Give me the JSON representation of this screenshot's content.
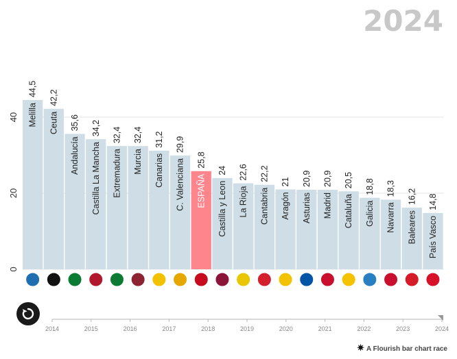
{
  "header": {
    "year": "2024"
  },
  "controls": {
    "credit": "A Flourish bar chart race"
  },
  "timeline": {
    "years": [
      "2014",
      "2015",
      "2016",
      "2017",
      "2018",
      "2019",
      "2020",
      "2021",
      "2022",
      "2023",
      "2024"
    ]
  },
  "colors": {
    "bar": "#cfdee6",
    "highlight": "#ff858d",
    "grid": "#e6e6e6"
  },
  "chart_data": {
    "type": "bar",
    "title": "2024",
    "categories": [
      "Melilla",
      "Ceuta",
      "Andalucía",
      "Castilla La Mancha",
      "Extremadura",
      "Murcia",
      "Canarias",
      "C. Valenciana",
      "ESPAÑA",
      "Castilla y Leon",
      "La Rioja",
      "Cantabria",
      "Aragón",
      "Asturias",
      "Madrid",
      "Cataluña",
      "Galicia",
      "Navarra",
      "Baleares",
      "País Vasco"
    ],
    "values": [
      44.5,
      42.2,
      35.6,
      34.2,
      32.4,
      32.4,
      31.2,
      29.9,
      25.8,
      24,
      22.6,
      22.2,
      21,
      20.9,
      20.9,
      20.5,
      18.8,
      18.3,
      16.2,
      14.8
    ],
    "value_labels": [
      "44,5",
      "42,2",
      "35,6",
      "34,2",
      "32,4",
      "32,4",
      "31,2",
      "29,9",
      "25,8",
      "24",
      "22,6",
      "22,2",
      "21",
      "20,9",
      "20,9",
      "20,5",
      "18,8",
      "18,3",
      "16,2",
      "14,8"
    ],
    "highlight": "ESPAÑA",
    "y_ticks": [
      "0",
      "20",
      "40"
    ],
    "ylim": [
      0,
      50
    ],
    "grid": true,
    "flags": [
      "melilla-flag",
      "ceuta-flag",
      "andalucia-flag",
      "castilla-la-mancha-flag",
      "extremadura-flag",
      "murcia-flag",
      "canarias-flag",
      "valenciana-flag",
      "espana-flag",
      "castilla-y-leon-flag",
      "la-rioja-flag",
      "cantabria-flag",
      "aragon-flag",
      "asturias-flag",
      "madrid-flag",
      "cataluna-flag",
      "galicia-flag",
      "navarra-flag",
      "baleares-flag",
      "pais-vasco-flag"
    ]
  }
}
